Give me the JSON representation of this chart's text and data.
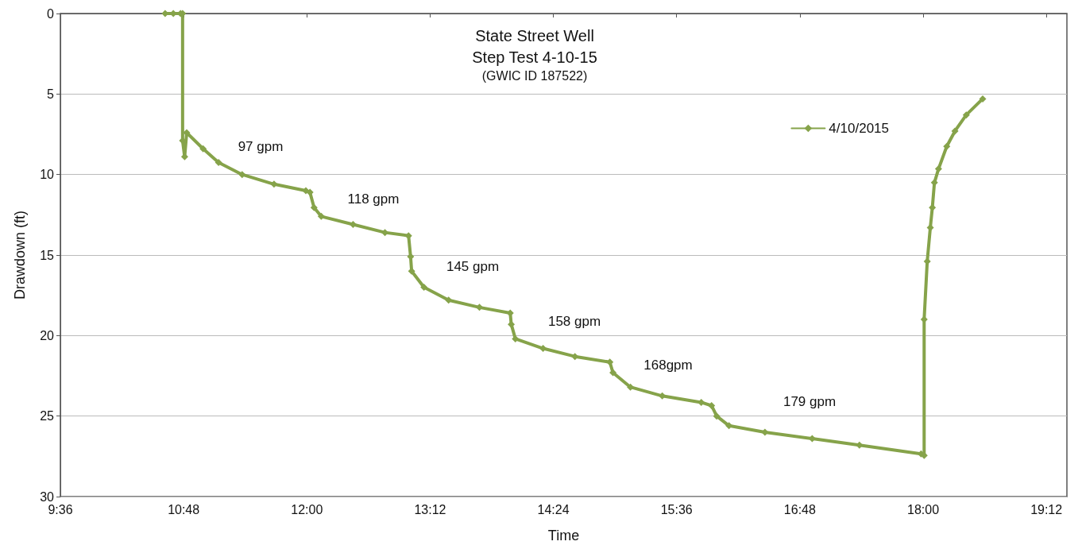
{
  "chart_data": {
    "type": "line",
    "title": "State Street Well\nStep Test 4-10-15",
    "subtitle": "(GWIC ID 187522)",
    "xlabel": "Time",
    "ylabel": "Drawdown (ft)",
    "xlim": [
      9.6,
      19.4
    ],
    "xticks": [
      {
        "value": 9.6,
        "label": "9:36"
      },
      {
        "value": 10.8,
        "label": "10:48"
      },
      {
        "value": 12,
        "label": "12:00"
      },
      {
        "value": 13.2,
        "label": "13:12"
      },
      {
        "value": 14.4,
        "label": "14:24"
      },
      {
        "value": 15.6,
        "label": "15:36"
      },
      {
        "value": 16.8,
        "label": "16:48"
      },
      {
        "value": 18,
        "label": "18:00"
      },
      {
        "value": 19.2,
        "label": "19:12"
      }
    ],
    "ylim": [
      30,
      0
    ],
    "yticks": [
      0,
      5,
      10,
      15,
      20,
      25,
      30
    ],
    "grid": "y",
    "legend": "top right",
    "marker": "diamond",
    "line_style": "solid",
    "series": [
      {
        "name": "4/10/2015",
        "color": "#86a34a",
        "x": [
          10.62,
          10.7,
          10.77,
          10.79,
          10.79,
          10.81,
          10.83,
          10.99,
          11.14,
          11.37,
          11.68,
          11.99,
          12.03,
          12.07,
          12.14,
          12.45,
          12.76,
          12.99,
          13.01,
          13.02,
          13.14,
          13.38,
          13.68,
          13.98,
          13.99,
          14.03,
          14.3,
          14.61,
          14.95,
          14.98,
          15.15,
          15.46,
          15.84,
          15.94,
          15.99,
          16.11,
          16.46,
          16.92,
          17.38,
          17.98,
          18.01,
          18.01,
          18.04,
          18.07,
          18.09,
          18.11,
          18.15,
          18.23,
          18.31,
          18.42,
          18.58
        ],
        "values": [
          0,
          0,
          0,
          0,
          7.9,
          8.9,
          7.4,
          8.4,
          9.25,
          10.0,
          10.6,
          11.0,
          11.1,
          12.05,
          12.6,
          13.1,
          13.6,
          13.8,
          15.1,
          16.0,
          17.0,
          17.8,
          18.25,
          18.6,
          19.3,
          20.2,
          20.8,
          21.3,
          21.65,
          22.3,
          23.2,
          23.75,
          24.15,
          24.35,
          25.0,
          25.6,
          26.0,
          26.4,
          26.8,
          27.35,
          27.45,
          19.0,
          15.4,
          13.3,
          12.05,
          10.5,
          9.65,
          8.25,
          7.3,
          6.3,
          5.3
        ]
      }
    ],
    "annotations": [
      "97 gpm",
      "118 gpm",
      "145 gpm",
      "158 gpm",
      "168gpm",
      "179 gpm"
    ]
  }
}
